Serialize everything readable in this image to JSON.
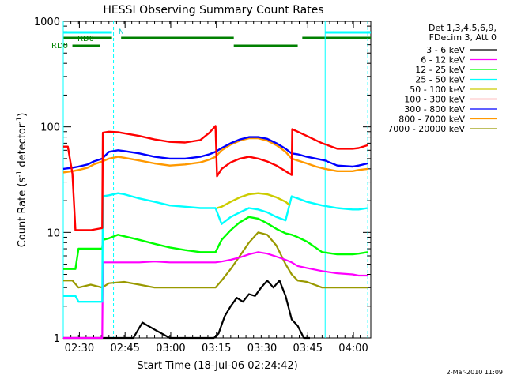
{
  "chart_data": {
    "type": "line",
    "title": "HESSI Observing Summary Count Rates",
    "xlabel": "Start Time (18-Jul-06 02:24:42)",
    "ylabel_main": "Count Rate (s",
    "ylabel_sup1": "-1",
    "ylabel_mid": " detector",
    "ylabel_sup2": "-1",
    "ylabel_end": ")",
    "yscale": "log",
    "ylim": [
      1,
      1000
    ],
    "xlim_minutes": [
      0,
      101
    ],
    "x_tick_labels": [
      "02:30",
      "02:45",
      "03:00",
      "03:15",
      "03:30",
      "03:45",
      "04:00"
    ],
    "x_tick_minutes": [
      5.3,
      20.3,
      35.3,
      50.3,
      65.3,
      80.3,
      95.3
    ],
    "y_tick_labels": [
      "1",
      "10",
      "100",
      "1000"
    ],
    "y_tick_values": [
      1,
      10,
      100,
      1000
    ],
    "legend_header": [
      "Det 1,3,4,5,6,9,",
      "FDecim 3, Att 0"
    ],
    "legend_placement": "right",
    "footer_date": "2-Mar-2010 11:09",
    "annotations": {
      "rd0_top": "RD0",
      "rd0_bottom": "RD0",
      "n_label": "N"
    },
    "series": [
      {
        "name": "3 - 6 keV",
        "color": "#000000",
        "x": [
          0,
          10,
          14,
          17,
          20,
          23,
          26,
          30,
          35,
          40,
          45,
          49.5,
          51,
          53,
          55,
          57,
          59,
          61,
          63,
          65,
          67,
          69,
          71,
          73,
          75,
          77,
          79,
          81
        ],
        "y": [
          1.0,
          1.0,
          1.0,
          1.0,
          1.0,
          1.0,
          1.4,
          1.2,
          1.0,
          1.0,
          1.0,
          1.0,
          1.1,
          1.6,
          2.0,
          2.4,
          2.2,
          2.6,
          2.5,
          3.0,
          3.5,
          3.0,
          3.5,
          2.5,
          1.5,
          1.3,
          1.0,
          1.0
        ]
      },
      {
        "name": "6 - 12 keV",
        "color": "#ff00ff",
        "x": [
          0,
          3,
          4,
          5,
          9,
          12.8,
          13,
          15,
          20,
          25,
          30,
          35,
          40,
          45,
          50,
          52,
          55,
          58,
          61,
          64,
          67,
          70,
          73,
          75,
          77,
          80,
          85,
          90,
          95,
          97,
          100
        ],
        "y": [
          1.0,
          1.0,
          1.0,
          1.0,
          1.0,
          1.0,
          5.2,
          5.2,
          5.2,
          5.2,
          5.3,
          5.2,
          5.2,
          5.2,
          5.2,
          5.3,
          5.5,
          5.8,
          6.2,
          6.5,
          6.3,
          5.9,
          5.5,
          5.2,
          4.8,
          4.6,
          4.3,
          4.1,
          4.0,
          3.9,
          3.9
        ]
      },
      {
        "name": "12 - 25 keV",
        "color": "#00ff00",
        "x": [
          0,
          3,
          4,
          5,
          9,
          12.8,
          13,
          15,
          18,
          20,
          25,
          30,
          35,
          40,
          45,
          50,
          52,
          55,
          58,
          61,
          64,
          67,
          70,
          73,
          75,
          77,
          80,
          85,
          90,
          95,
          97,
          100
        ],
        "y": [
          4.5,
          4.5,
          4.5,
          7.0,
          7.0,
          7.0,
          8.5,
          8.8,
          9.5,
          9.2,
          8.5,
          7.8,
          7.2,
          6.8,
          6.5,
          6.5,
          8.5,
          10.5,
          12.5,
          14.0,
          13.5,
          12.2,
          10.8,
          9.8,
          9.5,
          9.0,
          8.2,
          6.5,
          6.2,
          6.2,
          6.3,
          6.5
        ]
      },
      {
        "name": "25 - 50 keV",
        "color": "#00ffff",
        "x": [
          0,
          3,
          4,
          5,
          9,
          12.8,
          13,
          15,
          18,
          20,
          25,
          30,
          35,
          40,
          45,
          50,
          52,
          55,
          58,
          61,
          64,
          67,
          70,
          73,
          75,
          77,
          80,
          85,
          90,
          95,
          97,
          100
        ],
        "y": [
          2.5,
          2.5,
          2.5,
          2.2,
          2.2,
          2.2,
          22.0,
          22.5,
          23.5,
          23.0,
          21.0,
          19.5,
          18.0,
          17.5,
          17.0,
          17.0,
          12.0,
          14.0,
          15.5,
          17.0,
          16.5,
          15.5,
          14.0,
          13.0,
          22.0,
          21.0,
          19.5,
          18.0,
          17.0,
          16.5,
          16.5,
          17.0
        ]
      },
      {
        "name": "50 - 100 keV",
        "color": "#cccc00",
        "x": [
          50.5,
          52,
          55,
          58,
          61,
          64,
          67,
          70,
          73,
          74.5
        ],
        "y": [
          17.0,
          17.5,
          19.5,
          21.5,
          23.0,
          23.5,
          23.0,
          21.5,
          19.5,
          18.0
        ]
      },
      {
        "name": "100 - 300 keV",
        "color": "#ff0000",
        "x": [
          0,
          1.5,
          3,
          4,
          5,
          9,
          12.8,
          13,
          15,
          18,
          20,
          25,
          30,
          35,
          40,
          45,
          48,
          50,
          50.5,
          52,
          55,
          58,
          61,
          64,
          67,
          70,
          73,
          75,
          75.2,
          77,
          80,
          85,
          90,
          95,
          97,
          100
        ],
        "y": [
          65.0,
          65.0,
          36.0,
          10.5,
          10.5,
          10.5,
          11.0,
          88.0,
          90.0,
          89.0,
          87.0,
          82.0,
          76.0,
          72.0,
          71.0,
          75.0,
          88.0,
          102.0,
          34.0,
          40.0,
          46.0,
          50.0,
          52.0,
          50.0,
          47.0,
          43.0,
          38.0,
          35.0,
          95.0,
          90.0,
          82.0,
          70.0,
          62.0,
          62.0,
          63.0,
          67.0
        ]
      },
      {
        "name": "300 - 800 keV",
        "color": "#0000ff",
        "x": [
          0,
          3,
          5,
          8,
          10,
          12.8,
          15,
          18,
          20,
          25,
          30,
          35,
          40,
          45,
          48,
          50,
          52,
          55,
          58,
          61,
          64,
          67,
          70,
          73,
          75,
          77,
          80,
          83,
          86,
          90,
          95,
          97,
          100
        ],
        "y": [
          40.0,
          41.0,
          42.0,
          44.0,
          47.0,
          50.0,
          58.0,
          60.0,
          59.0,
          56.0,
          52.0,
          50.0,
          50.0,
          52.0,
          55.0,
          58.0,
          63.0,
          70.0,
          76.0,
          80.0,
          80.0,
          77.0,
          70.0,
          62.0,
          56.0,
          55.0,
          52.0,
          50.0,
          48.0,
          43.0,
          42.0,
          43.0,
          45.0
        ]
      },
      {
        "name": "800 - 7000 keV",
        "color": "#ff9900",
        "x": [
          0,
          3,
          5,
          8,
          10,
          12.8,
          15,
          18,
          20,
          25,
          30,
          35,
          40,
          45,
          48,
          50,
          52,
          55,
          58,
          61,
          64,
          67,
          70,
          73,
          75,
          77,
          80,
          83,
          86,
          90,
          95,
          97,
          100
        ],
        "y": [
          37.0,
          38.0,
          39.0,
          41.0,
          44.0,
          47.0,
          50.0,
          52.0,
          51.0,
          48.0,
          45.0,
          43.0,
          44.0,
          46.0,
          49.0,
          52.0,
          60.0,
          68.0,
          74.0,
          78.0,
          78.0,
          74.0,
          67.0,
          58.0,
          50.0,
          48.0,
          45.0,
          42.0,
          40.0,
          38.0,
          38.0,
          39.0,
          40.0
        ]
      },
      {
        "name": "7000 - 20000 keV",
        "color": "#999900",
        "x": [
          0,
          3,
          5,
          9,
          12.8,
          15,
          20,
          25,
          30,
          35,
          40,
          45,
          50,
          52,
          55,
          58,
          61,
          64,
          67,
          70,
          73,
          75,
          77,
          80,
          85,
          90,
          95,
          97,
          100
        ],
        "y": [
          3.5,
          3.5,
          3.0,
          3.2,
          3.0,
          3.3,
          3.4,
          3.2,
          3.0,
          3.0,
          3.0,
          3.0,
          3.0,
          3.5,
          4.5,
          6.0,
          8.0,
          10.0,
          9.5,
          7.5,
          5.0,
          4.0,
          3.5,
          3.4,
          3.0,
          3.0,
          3.0,
          3.0,
          3.0
        ]
      }
    ],
    "bars": {
      "rd0_top": [
        [
          0,
          16
        ],
        [
          19,
          56
        ],
        [
          78.5,
          101
        ]
      ],
      "rd0_bottom": [
        [
          3,
          12
        ],
        [
          56,
          77
        ]
      ],
      "n_flag": [
        [
          0,
          16
        ],
        [
          86,
          101
        ]
      ]
    },
    "vlines": {
      "solid": [
        0,
        86
      ],
      "dashed": [
        16.5,
        100
      ]
    },
    "colors": {
      "rd0_bars": "#008000",
      "n_bars": "#00ffff",
      "vlines": "#00ffff"
    }
  }
}
